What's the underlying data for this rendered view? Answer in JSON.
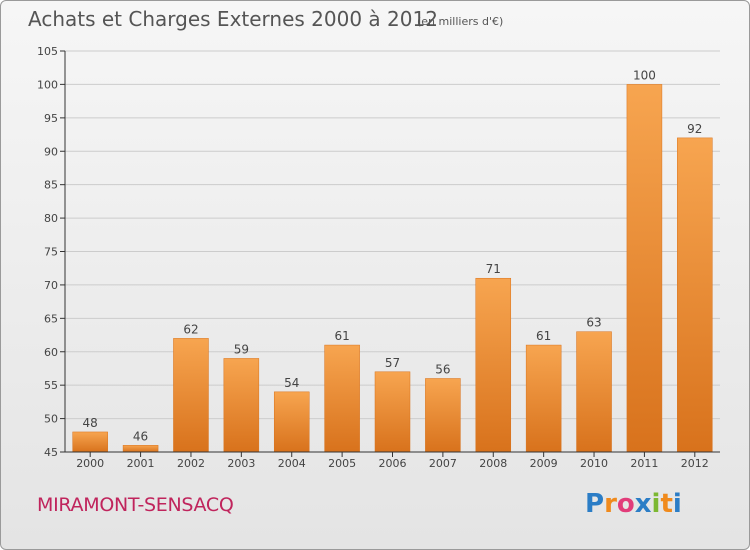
{
  "title": "Achats et Charges Externes 2000 à 2012",
  "subtitle": "(en milliers d'€)",
  "place": "MIRAMONT-SENSACQ",
  "logo": {
    "text": "Proxiti",
    "colors": [
      "#2b7dc6",
      "#f08a1c",
      "#e23c7a",
      "#2b7dc6",
      "#7cb832",
      "#f08a1c",
      "#2b7dc6"
    ]
  },
  "colors": {
    "bar_light": "#f7a550",
    "bar_dark": "#d8721c",
    "grid": "#cccccc",
    "axis": "#333333",
    "text": "#444444"
  },
  "chart_data": {
    "type": "bar",
    "categories": [
      "2000",
      "2001",
      "2002",
      "2003",
      "2004",
      "2005",
      "2006",
      "2007",
      "2008",
      "2009",
      "2010",
      "2011",
      "2012"
    ],
    "values": [
      48,
      46,
      62,
      59,
      54,
      61,
      57,
      56,
      71,
      61,
      63,
      100,
      92
    ],
    "ylim": [
      45,
      105
    ],
    "yticks": [
      45,
      50,
      55,
      60,
      65,
      70,
      75,
      80,
      85,
      90,
      95,
      100,
      105
    ],
    "grid": "horizontal"
  }
}
